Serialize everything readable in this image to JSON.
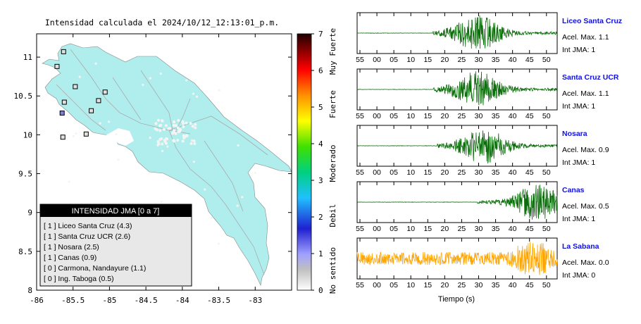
{
  "map": {
    "title": "Intensidad calculada el 2024/10/12_12:13:01_p.m.",
    "x_ticks": [
      "-86",
      "-85.5",
      "-85",
      "-84.5",
      "-84",
      "-83.5",
      "-83"
    ],
    "y_ticks": [
      "11",
      "10.5",
      "10",
      "9.5",
      "9",
      "8.5",
      "8"
    ],
    "land_color": "#b0eeee",
    "stations": [
      {
        "lon": -85.63,
        "lat": 11.07,
        "color": "#e0e0e0"
      },
      {
        "lon": -85.72,
        "lat": 10.88,
        "color": "#e0e0e0"
      },
      {
        "lon": -85.47,
        "lat": 10.62,
        "color": "#e0e0e0"
      },
      {
        "lon": -85.06,
        "lat": 10.55,
        "color": "#e0e0e0"
      },
      {
        "lon": -85.62,
        "lat": 10.42,
        "color": "#e0e0e0"
      },
      {
        "lon": -85.65,
        "lat": 10.28,
        "color": "#8080d0"
      },
      {
        "lon": -85.15,
        "lat": 10.44,
        "color": "#e0e0e0"
      },
      {
        "lon": -85.25,
        "lat": 10.31,
        "color": "#e0e0e0"
      },
      {
        "lon": -85.64,
        "lat": 9.97,
        "color": "#e0e0e0"
      },
      {
        "lon": -85.32,
        "lat": 10.01,
        "color": "#e0e0e0"
      }
    ]
  },
  "colorbar": {
    "ticks": [
      "0",
      "1",
      "2",
      "3",
      "4",
      "5",
      "6",
      "7"
    ],
    "labels": [
      "No sentido",
      "Debil",
      "Moderado",
      "Fuerte",
      "Muy Fuerte"
    ]
  },
  "legend": {
    "title": "INTENSIDAD JMA [0 a 7]",
    "items": [
      "[ 1 ] Liceo Santa Cruz (4.3)",
      "[ 1 ] Santa Cruz UCR (2.6)",
      "[ 1 ] Nosara (2.5)",
      "[ 1 ] Canas (0.9)",
      "[ 0 ] Carmona, Nandayure (1.1)",
      "[ 0 ] Ing. Taboga (0.5)"
    ]
  },
  "waveforms": {
    "x_ticks": [
      "55",
      "00",
      "05",
      "10",
      "15",
      "20",
      "25",
      "30",
      "35",
      "40",
      "45",
      "50"
    ],
    "xlabel": "Tiempo (s)",
    "panels": [
      {
        "name": "Liceo Santa Cruz",
        "acel": "Acel. Max. 1.1",
        "int": "Int JMA: 1",
        "color": "#0a6e0a",
        "onset": 0.38,
        "peak": 0.6,
        "noise": 0.01
      },
      {
        "name": "Santa Cruz UCR",
        "acel": "Acel. Max. 1.1",
        "int": "Int JMA: 1",
        "color": "#0a6e0a",
        "onset": 0.38,
        "peak": 0.6,
        "noise": 0.01
      },
      {
        "name": "Nosara",
        "acel": "Acel. Max. 0.9",
        "int": "Int JMA: 1",
        "color": "#0a6e0a",
        "onset": 0.4,
        "peak": 0.63,
        "noise": 0.01
      },
      {
        "name": "Canas",
        "acel": "Acel. Max. 0.5",
        "int": "Int JMA: 1",
        "color": "#0a6e0a",
        "onset": 0.6,
        "peak": 0.9,
        "noise": 0.01
      },
      {
        "name": "La Sabana",
        "acel": "Acel. Max. 0.0",
        "int": "Int JMA: 0",
        "color": "#ffa500",
        "onset": 0.0,
        "peak": 0.88,
        "noise": 0.35
      }
    ]
  }
}
